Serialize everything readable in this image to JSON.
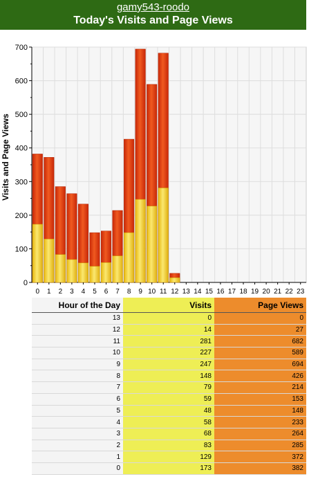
{
  "header": {
    "site": "gamy543-roodo",
    "title": "Today's Visits and Page Views"
  },
  "colors": {
    "header_bg": "#2e6a14",
    "visits": "#f0d030",
    "page_views": "#e04010"
  },
  "chart_data": {
    "type": "bar",
    "title": "Today's Visits and Page Views",
    "xlabel": "",
    "ylabel": "Visits and Page Views",
    "ylim": [
      0,
      700
    ],
    "yticks": [
      0,
      100,
      200,
      300,
      400,
      500,
      600,
      700
    ],
    "categories": [
      "0",
      "1",
      "2",
      "3",
      "4",
      "5",
      "6",
      "7",
      "8",
      "9",
      "10",
      "11",
      "12",
      "13",
      "14",
      "15",
      "16",
      "17",
      "18",
      "19",
      "20",
      "21",
      "22",
      "23"
    ],
    "series": [
      {
        "name": "Visits",
        "values": [
          173,
          129,
          83,
          68,
          58,
          48,
          59,
          79,
          148,
          247,
          227,
          281,
          14,
          0,
          null,
          null,
          null,
          null,
          null,
          null,
          null,
          null,
          null,
          null
        ]
      },
      {
        "name": "Page Views",
        "values": [
          382,
          372,
          285,
          264,
          233,
          148,
          153,
          214,
          426,
          694,
          589,
          682,
          27,
          0,
          null,
          null,
          null,
          null,
          null,
          null,
          null,
          null,
          null,
          null
        ]
      }
    ],
    "grid": true
  },
  "table": {
    "headers": [
      "Hour of the Day",
      "Visits",
      "Page Views"
    ],
    "rows": [
      [
        "13",
        "0",
        "0"
      ],
      [
        "12",
        "14",
        "27"
      ],
      [
        "11",
        "281",
        "682"
      ],
      [
        "10",
        "227",
        "589"
      ],
      [
        "9",
        "247",
        "694"
      ],
      [
        "8",
        "148",
        "426"
      ],
      [
        "7",
        "79",
        "214"
      ],
      [
        "6",
        "59",
        "153"
      ],
      [
        "5",
        "48",
        "148"
      ],
      [
        "4",
        "58",
        "233"
      ],
      [
        "3",
        "68",
        "264"
      ],
      [
        "2",
        "83",
        "285"
      ],
      [
        "1",
        "129",
        "372"
      ],
      [
        "0",
        "173",
        "382"
      ]
    ]
  }
}
